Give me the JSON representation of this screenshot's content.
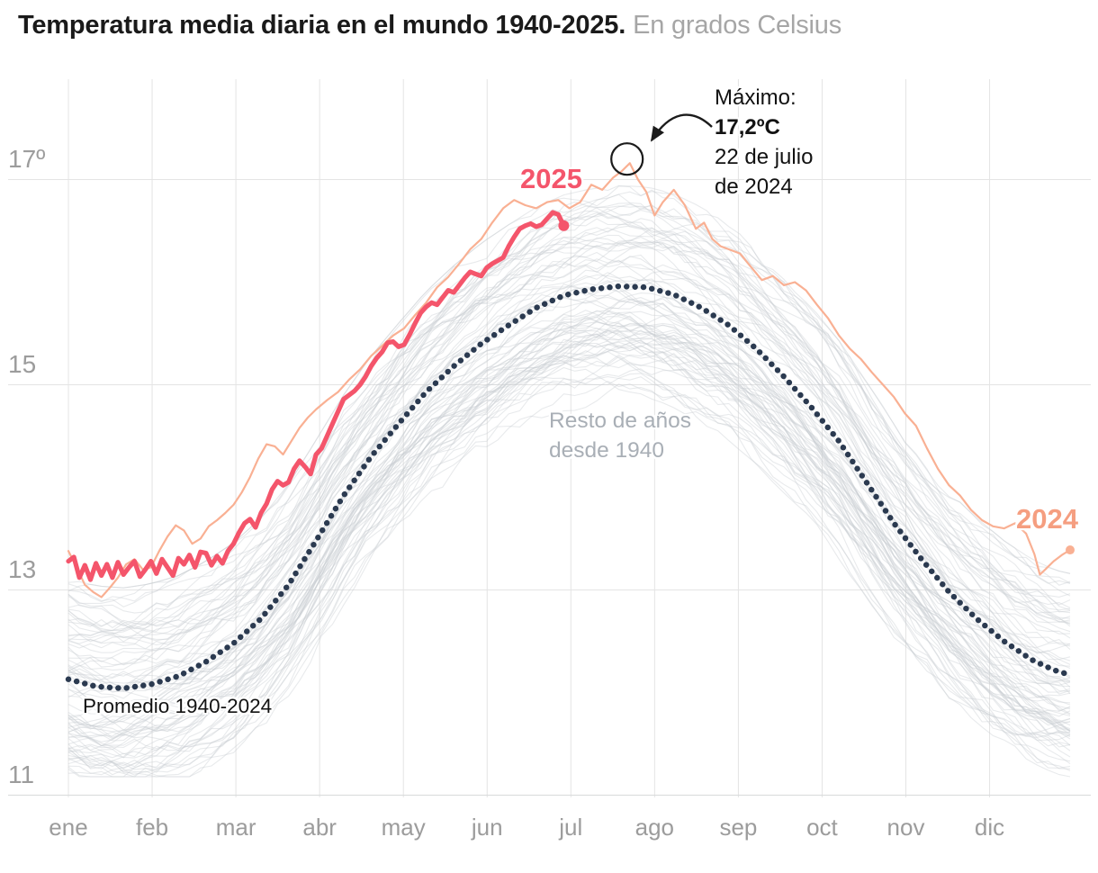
{
  "title": {
    "main": "Temperatura media diaria en el mundo 1940-2025.",
    "subtitle": "En grados Celsius"
  },
  "labels": {
    "s2025": "2025",
    "s2024": "2024",
    "promedio": "Promedio 1940-2024",
    "resto_line1": "Resto de años",
    "resto_line2": "desde 1940",
    "max_title": "Máximo:",
    "max_value": "17,2ºC",
    "max_date1": "22 de julio",
    "max_date2": "de 2024"
  },
  "colors": {
    "line_2025": "#F4556B",
    "label_2025": "#F4556B",
    "line_2024": "#F9B093",
    "label_2024": "#F59E80",
    "promedio": "#2B3A50",
    "background_years": "#C7CCD1",
    "gridline": "#E4E4E4",
    "gridline_bottom": "#D8DADB",
    "tick_label": "#9C9C9C",
    "annotation": "#1B1B1B"
  },
  "chart_data": {
    "type": "line",
    "title": "Temperatura media diaria en el mundo 1940-2025",
    "y_unit": "grados Celsius",
    "x_axis": {
      "unit": "day_of_year",
      "range_days": [
        0,
        364
      ],
      "month_labels": [
        "ene",
        "feb",
        "mar",
        "abr",
        "may",
        "jun",
        "jul",
        "ago",
        "sep",
        "oct",
        "nov",
        "dic"
      ]
    },
    "y_axis": {
      "ticks": [
        {
          "label": "17º",
          "value": 17
        },
        {
          "label": "15",
          "value": 15
        },
        {
          "label": "13",
          "value": 13
        },
        {
          "label": "11",
          "value": 11
        }
      ],
      "range": [
        10.97,
        17.98
      ],
      "grid": true
    },
    "max_annotation": {
      "day": 203,
      "value": 17.2,
      "value_label": "17,2ºC",
      "date": "22 de julio de 2024"
    },
    "background_years": {
      "label": "Resto de años desde 1940",
      "first_year": 1940,
      "count": 84,
      "offset_range": [
        -0.8,
        0.9
      ],
      "based_on": "Promedio 1940-2024"
    },
    "series": [
      {
        "name": "2025",
        "color_key": "line_2025",
        "width": 5.2,
        "end_dot": 6,
        "points": [
          [
            0,
            13.28
          ],
          [
            2,
            13.32
          ],
          [
            4,
            13.12
          ],
          [
            6,
            13.24
          ],
          [
            8,
            13.1
          ],
          [
            10,
            13.26
          ],
          [
            12,
            13.14
          ],
          [
            14,
            13.25
          ],
          [
            16,
            13.12
          ],
          [
            18,
            13.27
          ],
          [
            20,
            13.15
          ],
          [
            22,
            13.22
          ],
          [
            24,
            13.28
          ],
          [
            26,
            13.13
          ],
          [
            28,
            13.2
          ],
          [
            30,
            13.28
          ],
          [
            32,
            13.16
          ],
          [
            34,
            13.3
          ],
          [
            36,
            13.22
          ],
          [
            38,
            13.14
          ],
          [
            40,
            13.31
          ],
          [
            42,
            13.25
          ],
          [
            44,
            13.34
          ],
          [
            46,
            13.22
          ],
          [
            48,
            13.37
          ],
          [
            50,
            13.36
          ],
          [
            52,
            13.24
          ],
          [
            54,
            13.33
          ],
          [
            56,
            13.26
          ],
          [
            58,
            13.38
          ],
          [
            60,
            13.45
          ],
          [
            62,
            13.56
          ],
          [
            64,
            13.65
          ],
          [
            66,
            13.69
          ],
          [
            68,
            13.61
          ],
          [
            70,
            13.75
          ],
          [
            72,
            13.84
          ],
          [
            74,
            13.98
          ],
          [
            76,
            14.06
          ],
          [
            78,
            14.02
          ],
          [
            80,
            14.05
          ],
          [
            82,
            14.18
          ],
          [
            84,
            14.26
          ],
          [
            86,
            14.2
          ],
          [
            88,
            14.13
          ],
          [
            90,
            14.32
          ],
          [
            92,
            14.38
          ],
          [
            94,
            14.5
          ],
          [
            96,
            14.62
          ],
          [
            98,
            14.74
          ],
          [
            100,
            14.86
          ],
          [
            102,
            14.9
          ],
          [
            104,
            14.94
          ],
          [
            106,
            15.0
          ],
          [
            108,
            15.08
          ],
          [
            110,
            15.18
          ],
          [
            112,
            15.26
          ],
          [
            114,
            15.32
          ],
          [
            116,
            15.41
          ],
          [
            118,
            15.42
          ],
          [
            120,
            15.37
          ],
          [
            122,
            15.39
          ],
          [
            124,
            15.49
          ],
          [
            126,
            15.6
          ],
          [
            128,
            15.7
          ],
          [
            130,
            15.76
          ],
          [
            132,
            15.8
          ],
          [
            134,
            15.78
          ],
          [
            136,
            15.85
          ],
          [
            138,
            15.92
          ],
          [
            140,
            15.9
          ],
          [
            142,
            15.97
          ],
          [
            144,
            16.04
          ],
          [
            146,
            16.1
          ],
          [
            148,
            16.08
          ],
          [
            150,
            16.06
          ],
          [
            152,
            16.14
          ],
          [
            154,
            16.18
          ],
          [
            156,
            16.21
          ],
          [
            158,
            16.24
          ],
          [
            160,
            16.35
          ],
          [
            162,
            16.44
          ],
          [
            164,
            16.52
          ],
          [
            166,
            16.55
          ],
          [
            168,
            16.57
          ],
          [
            170,
            16.54
          ],
          [
            172,
            16.56
          ],
          [
            174,
            16.62
          ],
          [
            176,
            16.68
          ],
          [
            178,
            16.66
          ],
          [
            180,
            16.55
          ]
        ]
      },
      {
        "name": "2024",
        "color_key": "line_2024",
        "width": 2.2,
        "end_dot": 5,
        "points": [
          [
            0,
            13.38
          ],
          [
            3,
            13.22
          ],
          [
            6,
            13.05
          ],
          [
            9,
            12.98
          ],
          [
            12,
            12.93
          ],
          [
            15,
            13.02
          ],
          [
            18,
            13.12
          ],
          [
            21,
            13.25
          ],
          [
            24,
            13.3
          ],
          [
            27,
            13.2
          ],
          [
            30,
            13.22
          ],
          [
            33,
            13.38
          ],
          [
            36,
            13.52
          ],
          [
            39,
            13.63
          ],
          [
            42,
            13.58
          ],
          [
            45,
            13.45
          ],
          [
            48,
            13.5
          ],
          [
            51,
            13.62
          ],
          [
            54,
            13.68
          ],
          [
            57,
            13.75
          ],
          [
            60,
            13.83
          ],
          [
            63,
            13.95
          ],
          [
            66,
            14.1
          ],
          [
            69,
            14.28
          ],
          [
            72,
            14.42
          ],
          [
            75,
            14.4
          ],
          [
            78,
            14.32
          ],
          [
            81,
            14.45
          ],
          [
            84,
            14.58
          ],
          [
            87,
            14.68
          ],
          [
            90,
            14.76
          ],
          [
            94,
            14.85
          ],
          [
            98,
            14.93
          ],
          [
            102,
            15.05
          ],
          [
            106,
            15.15
          ],
          [
            110,
            15.28
          ],
          [
            114,
            15.38
          ],
          [
            118,
            15.48
          ],
          [
            122,
            15.55
          ],
          [
            126,
            15.68
          ],
          [
            130,
            15.8
          ],
          [
            134,
            15.95
          ],
          [
            138,
            16.05
          ],
          [
            142,
            16.18
          ],
          [
            146,
            16.32
          ],
          [
            150,
            16.42
          ],
          [
            154,
            16.58
          ],
          [
            158,
            16.72
          ],
          [
            162,
            16.8
          ],
          [
            166,
            16.75
          ],
          [
            170,
            16.72
          ],
          [
            174,
            16.78
          ],
          [
            178,
            16.8
          ],
          [
            182,
            16.72
          ],
          [
            186,
            16.78
          ],
          [
            190,
            16.95
          ],
          [
            194,
            16.9
          ],
          [
            198,
            17.02
          ],
          [
            201,
            17.08
          ],
          [
            204,
            17.16
          ],
          [
            207,
            17.0
          ],
          [
            210,
            16.88
          ],
          [
            213,
            16.65
          ],
          [
            216,
            16.78
          ],
          [
            220,
            16.9
          ],
          [
            224,
            16.75
          ],
          [
            228,
            16.52
          ],
          [
            231,
            16.58
          ],
          [
            234,
            16.42
          ],
          [
            237,
            16.35
          ],
          [
            240,
            16.32
          ],
          [
            244,
            16.28
          ],
          [
            248,
            16.15
          ],
          [
            252,
            16.02
          ],
          [
            256,
            16.06
          ],
          [
            260,
            15.97
          ],
          [
            264,
            16.0
          ],
          [
            268,
            15.92
          ],
          [
            272,
            15.78
          ],
          [
            276,
            15.65
          ],
          [
            280,
            15.48
          ],
          [
            284,
            15.35
          ],
          [
            288,
            15.25
          ],
          [
            292,
            15.12
          ],
          [
            296,
            15.0
          ],
          [
            300,
            14.88
          ],
          [
            304,
            14.72
          ],
          [
            308,
            14.6
          ],
          [
            312,
            14.38
          ],
          [
            316,
            14.18
          ],
          [
            320,
            14.02
          ],
          [
            324,
            13.92
          ],
          [
            328,
            13.78
          ],
          [
            332,
            13.68
          ],
          [
            336,
            13.62
          ],
          [
            340,
            13.6
          ],
          [
            344,
            13.65
          ],
          [
            348,
            13.55
          ],
          [
            351,
            13.35
          ],
          [
            353,
            13.15
          ],
          [
            355,
            13.2
          ],
          [
            358,
            13.28
          ],
          [
            361,
            13.34
          ],
          [
            364,
            13.39
          ]
        ]
      },
      {
        "name": "Promedio 1940-2024",
        "color_key": "promedio",
        "style": "dotted",
        "points": [
          [
            0,
            12.13
          ],
          [
            10,
            12.06
          ],
          [
            20,
            12.04
          ],
          [
            30,
            12.08
          ],
          [
            40,
            12.16
          ],
          [
            50,
            12.3
          ],
          [
            60,
            12.48
          ],
          [
            70,
            12.72
          ],
          [
            80,
            13.05
          ],
          [
            90,
            13.48
          ],
          [
            100,
            13.92
          ],
          [
            110,
            14.3
          ],
          [
            120,
            14.62
          ],
          [
            130,
            14.93
          ],
          [
            140,
            15.18
          ],
          [
            150,
            15.4
          ],
          [
            160,
            15.58
          ],
          [
            170,
            15.75
          ],
          [
            180,
            15.87
          ],
          [
            190,
            15.93
          ],
          [
            200,
            15.96
          ],
          [
            210,
            15.95
          ],
          [
            220,
            15.88
          ],
          [
            230,
            15.75
          ],
          [
            240,
            15.58
          ],
          [
            250,
            15.35
          ],
          [
            260,
            15.08
          ],
          [
            270,
            14.78
          ],
          [
            280,
            14.45
          ],
          [
            290,
            14.05
          ],
          [
            300,
            13.65
          ],
          [
            310,
            13.3
          ],
          [
            320,
            12.98
          ],
          [
            330,
            12.72
          ],
          [
            340,
            12.5
          ],
          [
            350,
            12.32
          ],
          [
            358,
            12.22
          ],
          [
            363,
            12.18
          ]
        ]
      }
    ]
  }
}
